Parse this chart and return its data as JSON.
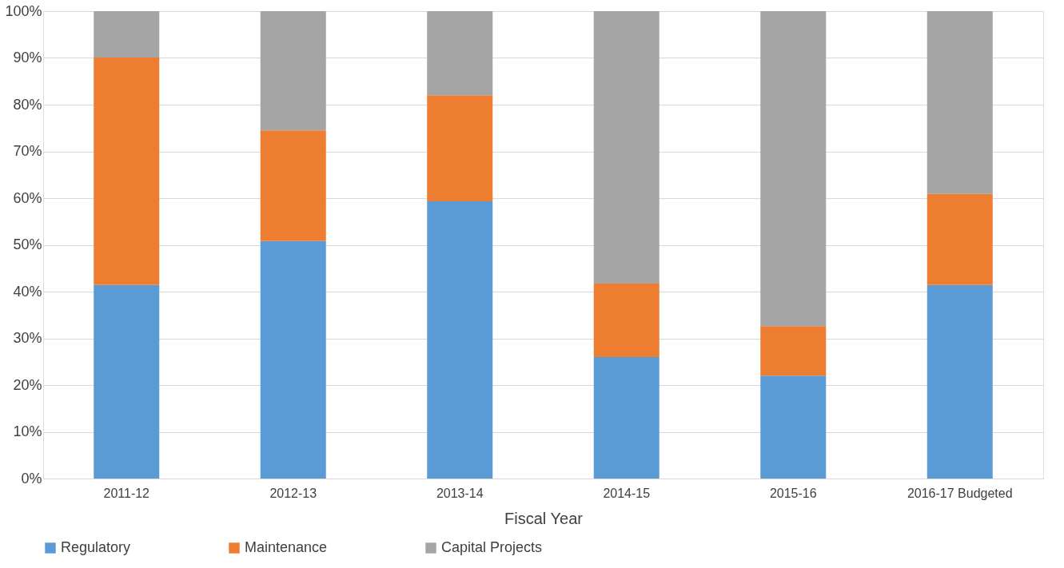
{
  "chart_data": {
    "type": "bar",
    "stacked": true,
    "xlabel": "Fiscal Year",
    "categories": [
      "2011-12",
      "2012-13",
      "2013-14",
      "2014-15",
      "2015-16",
      "2016-17  Budgeted"
    ],
    "series": [
      {
        "name": "Regulatory",
        "color": "#5b9bd5",
        "values": [
          41.4,
          50.8,
          59.3,
          26.0,
          22.0,
          41.4
        ]
      },
      {
        "name": "Maintenance",
        "color": "#ed7d31",
        "values": [
          48.7,
          23.7,
          22.7,
          15.7,
          10.6,
          19.5
        ]
      },
      {
        "name": "Capital Projects",
        "color": "#a5a5a5",
        "values": [
          9.9,
          25.5,
          18.0,
          58.3,
          67.4,
          39.1
        ]
      }
    ],
    "ylim": [
      0,
      100
    ],
    "yticks": [
      {
        "value": 0,
        "label": "0%"
      },
      {
        "value": 10,
        "label": "10%"
      },
      {
        "value": 20,
        "label": "20%"
      },
      {
        "value": 30,
        "label": "30%"
      },
      {
        "value": 40,
        "label": "40%"
      },
      {
        "value": 50,
        "label": "50%"
      },
      {
        "value": 60,
        "label": "60%"
      },
      {
        "value": 70,
        "label": "70%"
      },
      {
        "value": 80,
        "label": "80%"
      },
      {
        "value": 90,
        "label": "90%"
      },
      {
        "value": 100,
        "label": "100%"
      }
    ],
    "grid": "y",
    "legend": "bottom"
  }
}
